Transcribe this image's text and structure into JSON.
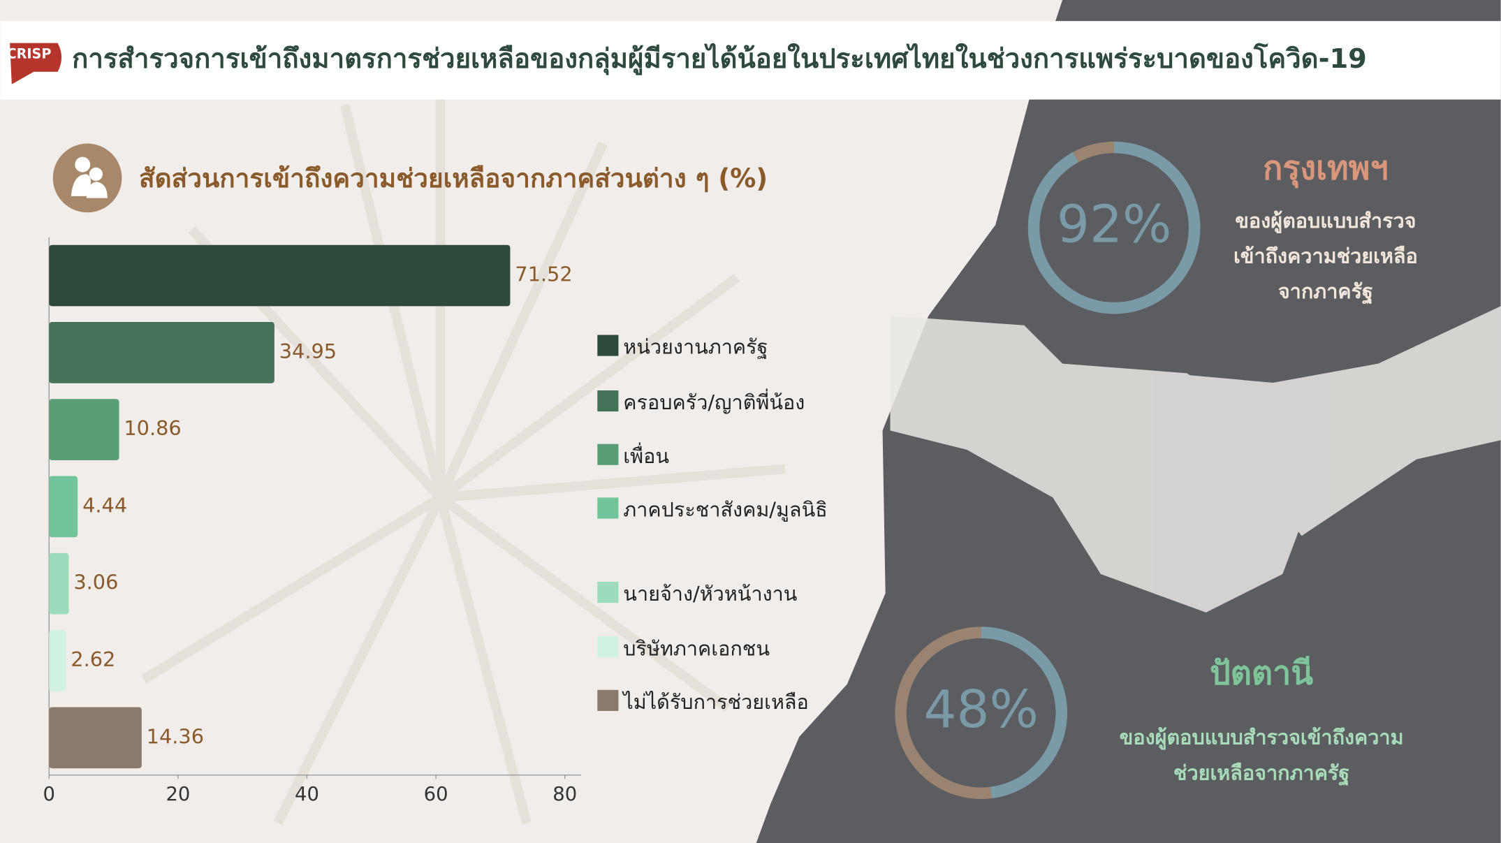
{
  "header": {
    "logo": "CRISP",
    "title": "การสำรวจการเข้าถึงมาตรการช่วยเหลือของกลุ่มผู้มีรายได้น้อยในประเทศไทยในช่วงการแพร่ระบาดของโควิด-19"
  },
  "chart_data": {
    "type": "bar",
    "orientation": "horizontal",
    "title": "สัดส่วนการเข้าถึงความช่วยเหลือจากภาคส่วนต่าง ๆ (%)",
    "categories": [
      "หน่วยงานภาครัฐ",
      "ครอบครัว/ญาติพี่น้อง",
      "เพื่อน",
      "ภาคประชาสังคม/มูลนิธิ",
      "นายจ้าง/หัวหน้างาน",
      "บริษัทภาคเอกชน",
      "ไม่ได้รับการช่วยเหลือ"
    ],
    "values": [
      71.52,
      34.95,
      10.86,
      4.44,
      3.06,
      2.62,
      14.36
    ],
    "colors": [
      "#2e4a3c",
      "#44725a",
      "#5a9e78",
      "#72c49a",
      "#9cdcbd",
      "#d2f2e2",
      "#8a7a6b"
    ],
    "xlim": [
      0,
      80
    ],
    "xticks": [
      0,
      20,
      40,
      60,
      80
    ],
    "legend": "right"
  },
  "stats": [
    {
      "city": "กรุงเทพฯ",
      "value": 92,
      "value_label": "92%",
      "description": [
        "ของผู้ตอบแบบสำรวจ",
        "เข้าถึงความช่วยเหลือ",
        "จากภาครัฐ"
      ]
    },
    {
      "city": "ปัตตานี",
      "value": 48,
      "value_label": "48%",
      "description": [
        "ของผู้ตอบแบบสำรวจเข้าถึงความ",
        "ช่วยเหลือจากภาครัฐ"
      ]
    }
  ]
}
